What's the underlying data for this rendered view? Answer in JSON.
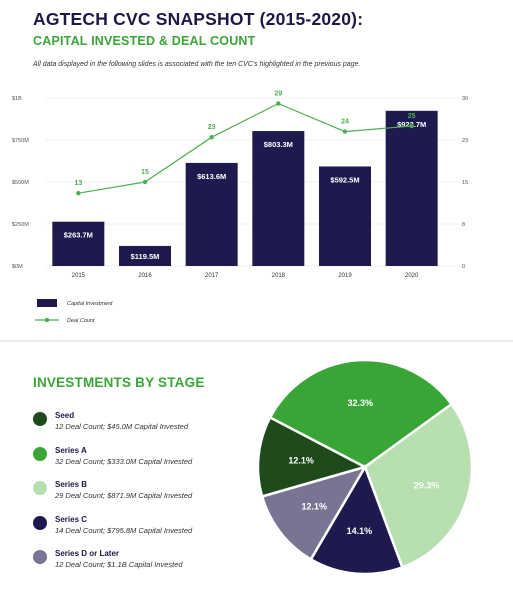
{
  "header": {
    "title": "AGTECH CVC SNAPSHOT (2015-2020):",
    "subtitle": "CAPITAL INVESTED & DEAL COUNT",
    "note": "All data displayed in the following slides is associated with the ten CVC's highlighted in the previous page."
  },
  "colors": {
    "navy": "#1e1a4d",
    "green": "#3aa537",
    "line": "#4caf50"
  },
  "chart_data": [
    {
      "type": "bar",
      "categories": [
        "2015",
        "2016",
        "2017",
        "2018",
        "2019",
        "2020"
      ],
      "series": [
        {
          "name": "Capital Investment",
          "values": [
            263.7,
            119.5,
            613.6,
            803.3,
            592.5,
            923.7
          ],
          "labels": [
            "$263.7M",
            "$119.5M",
            "$613.6M",
            "$803.3M",
            "$592.5M",
            "$923.7M"
          ]
        },
        {
          "name": "Deal Count",
          "type": "line",
          "values": [
            13,
            15,
            23,
            29,
            24,
            25
          ]
        }
      ],
      "ylim": [
        0,
        1000
      ],
      "y_ticks": [
        "$0M",
        "$250M",
        "$500M",
        "$750M",
        "$1B"
      ],
      "y2lim": [
        0,
        30
      ],
      "y2_ticks": [
        "0",
        "8",
        "15",
        "23",
        "30"
      ],
      "legend_position": "bottom-left"
    },
    {
      "type": "pie",
      "title": "INVESTMENTS BY STAGE",
      "slices": [
        {
          "name": "Seed",
          "value": 12.1,
          "label": "12.1%",
          "desc": "12 Deal Count; $45.0M Capital Invested",
          "color": "#1f4a1c",
          "text_color": "#ffffff"
        },
        {
          "name": "Series A",
          "value": 32.3,
          "label": "32.3%",
          "desc": "32 Deal Count; $333.0M Capital Invested",
          "color": "#3aa537",
          "text_color": "#ffffff"
        },
        {
          "name": "Series B",
          "value": 29.3,
          "label": "29.3%",
          "desc": "29 Deal Count; $871.9M Capital Invested",
          "color": "#b7dfaf",
          "text_color": "#ffffff"
        },
        {
          "name": "Series C",
          "value": 14.1,
          "label": "14.1%",
          "desc": "14 Deal Count; $795.8M Capital Invested",
          "color": "#1e1a4d",
          "text_color": "#ffffff"
        },
        {
          "name": "Series D or Later",
          "value": 12.1,
          "label": "12.1%",
          "desc": "12 Deal Count; $1.1B Capital Invested",
          "color": "#7a7494",
          "text_color": "#ffffff"
        }
      ]
    }
  ]
}
